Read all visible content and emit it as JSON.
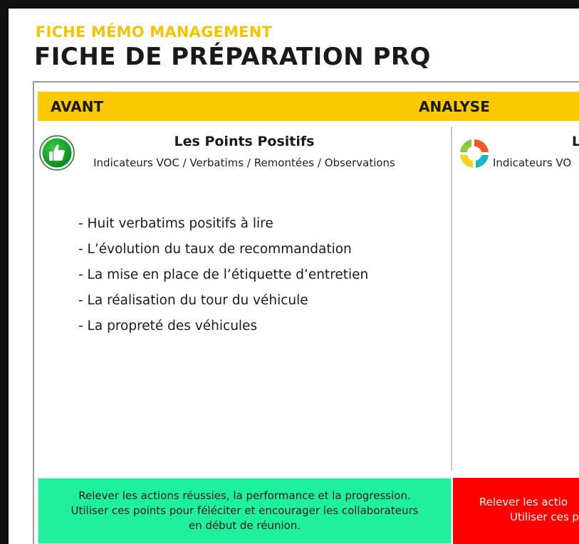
{
  "header": {
    "kicker": "FICHE MÉMO MANAGEMENT",
    "title": "FICHE DE PRÉPARATION PRQ"
  },
  "bar": {
    "left": "AVANT",
    "middle": "ANALYSE"
  },
  "column_positive": {
    "heading": "Les Points Positifs",
    "subtitle": "Indicateurs VOC / Verbatims / Remontées / Observations",
    "icon": "thumbs-up-icon",
    "items": [
      "- Huit verbatims positifs à lire",
      "- L’évolution du taux de recommandation",
      "- La mise en place de l’étiquette d’entretien",
      "- La réalisation du tour du véhicule",
      "- La propreté des véhicules"
    ],
    "footer": "Relever les actions réussies, la performance et la progression.\nUtiliser ces points pour féléciter et encourager les collaborateurs\nen début de réunion."
  },
  "column_second": {
    "heading": "L",
    "subtitle": "Indicateurs VO",
    "icon": "cycle-arrows-icon",
    "footer_line1": "Relever les actio",
    "footer_line2": "Utiliser ces p"
  },
  "colors": {
    "accent_yellow": "#fcc800",
    "kicker_yellow": "#f5c400",
    "positive_green": "#1ef0a0",
    "negative_red": "#ff0000",
    "icon_green": "#17a32a"
  }
}
